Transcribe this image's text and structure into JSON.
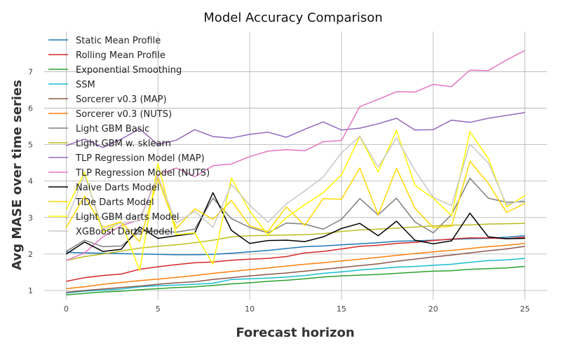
{
  "chart_data": {
    "type": "line",
    "title": "Model Accuracy Comparison",
    "xlabel": "Forecast horizon",
    "ylabel": "Avg MASE over time series",
    "xlim": [
      -1.2,
      26.2
    ],
    "ylim": [
      0.75,
      8.1
    ],
    "xticks": [
      0,
      5,
      10,
      15,
      20,
      25
    ],
    "yticks": [
      1,
      2,
      3,
      4,
      5,
      6,
      7
    ],
    "grid": true,
    "legend": "top-left",
    "x": [
      0,
      1,
      2,
      3,
      4,
      5,
      6,
      7,
      8,
      9,
      10,
      11,
      12,
      13,
      14,
      15,
      16,
      17,
      18,
      19,
      20,
      21,
      22,
      23,
      24,
      25
    ],
    "series": [
      {
        "name": "Static Mean Profile",
        "color": "#1f77b4",
        "values": [
          2.05,
          2.03,
          2.02,
          2.01,
          2.0,
          1.99,
          1.98,
          1.98,
          1.99,
          2.02,
          2.06,
          2.1,
          2.15,
          2.2,
          2.22,
          2.25,
          2.28,
          2.31,
          2.35,
          2.36,
          2.38,
          2.4,
          2.42,
          2.43,
          2.46,
          2.5
        ]
      },
      {
        "name": "Rolling Mean Profile",
        "color": "#d62728",
        "values": [
          1.25,
          1.35,
          1.41,
          1.45,
          1.58,
          1.65,
          1.71,
          1.76,
          1.78,
          1.83,
          1.86,
          1.88,
          1.93,
          2.03,
          2.07,
          2.14,
          2.21,
          2.24,
          2.29,
          2.32,
          2.37,
          2.41,
          2.44,
          2.44,
          2.42,
          2.46
        ]
      },
      {
        "name": "Exponential Smoothing",
        "color": "#2ca02c",
        "values": [
          0.88,
          0.92,
          0.96,
          0.98,
          1.02,
          1.05,
          1.08,
          1.1,
          1.14,
          1.18,
          1.21,
          1.25,
          1.28,
          1.32,
          1.37,
          1.4,
          1.42,
          1.44,
          1.47,
          1.5,
          1.53,
          1.54,
          1.58,
          1.6,
          1.62,
          1.66
        ]
      },
      {
        "name": "SSM",
        "color": "#17becf",
        "values": [
          0.93,
          0.98,
          1.01,
          1.04,
          1.1,
          1.13,
          1.15,
          1.17,
          1.2,
          1.3,
          1.32,
          1.34,
          1.37,
          1.41,
          1.47,
          1.51,
          1.56,
          1.6,
          1.64,
          1.66,
          1.69,
          1.72,
          1.77,
          1.82,
          1.84,
          1.88
        ]
      },
      {
        "name": "Sorcerer v0.3 (MAP)",
        "color": "#8c564b",
        "values": [
          0.95,
          1.0,
          1.04,
          1.08,
          1.12,
          1.17,
          1.21,
          1.24,
          1.3,
          1.35,
          1.4,
          1.44,
          1.48,
          1.53,
          1.58,
          1.63,
          1.68,
          1.73,
          1.8,
          1.86,
          1.92,
          1.97,
          2.03,
          2.09,
          2.14,
          2.21
        ]
      },
      {
        "name": "Sorcerer v0.3 (NUTS)",
        "color": "#ff7f0e",
        "values": [
          1.05,
          1.1,
          1.17,
          1.22,
          1.27,
          1.31,
          1.36,
          1.41,
          1.47,
          1.52,
          1.57,
          1.62,
          1.67,
          1.72,
          1.76,
          1.81,
          1.86,
          1.91,
          1.96,
          2.01,
          2.06,
          2.1,
          2.15,
          2.2,
          2.24,
          2.29
        ]
      },
      {
        "name": "Light GBM Basic",
        "color": "#7f7f7f",
        "values": [
          2.07,
          2.38,
          2.2,
          2.22,
          2.63,
          2.62,
          2.6,
          2.68,
          3.53,
          2.97,
          2.73,
          2.58,
          2.85,
          2.82,
          2.68,
          2.95,
          3.52,
          3.07,
          3.53,
          2.88,
          2.58,
          3.08,
          4.08,
          3.53,
          3.42,
          3.43
        ]
      },
      {
        "name": "Light GBM w. sklearn",
        "color": "#bcbd22",
        "values": [
          1.82,
          1.93,
          2.0,
          2.08,
          2.16,
          2.21,
          2.25,
          2.31,
          2.38,
          2.47,
          2.5,
          2.51,
          2.52,
          2.53,
          2.56,
          2.62,
          2.66,
          2.68,
          2.71,
          2.74,
          2.77,
          2.79,
          2.8,
          2.82,
          2.83,
          2.84
        ]
      },
      {
        "name": "TLP Regression Model (MAP)",
        "color": "#9467bd",
        "values": [
          4.97,
          5.15,
          4.92,
          5.15,
          5.43,
          5.0,
          5.12,
          5.41,
          5.22,
          5.18,
          5.28,
          5.34,
          5.2,
          5.42,
          5.62,
          5.4,
          5.45,
          5.57,
          5.72,
          5.4,
          5.41,
          5.67,
          5.61,
          5.72,
          5.8,
          5.88
        ]
      },
      {
        "name": "TLP Regression Model (NUTS)",
        "color": "#e377c2",
        "values": [
          1.82,
          2.03,
          2.47,
          2.78,
          2.93,
          4.17,
          4.36,
          4.12,
          4.42,
          4.47,
          4.67,
          4.82,
          4.86,
          4.83,
          5.08,
          5.11,
          6.04,
          6.24,
          6.45,
          6.44,
          6.65,
          6.59,
          7.04,
          7.03,
          7.32,
          7.58
        ]
      },
      {
        "name": "Naive Darts Model",
        "color": "#000000",
        "values": [
          2.0,
          2.33,
          2.07,
          2.13,
          2.74,
          2.43,
          2.5,
          2.57,
          3.68,
          2.65,
          2.29,
          2.37,
          2.38,
          2.34,
          2.47,
          2.7,
          2.84,
          2.5,
          2.9,
          2.38,
          2.28,
          2.36,
          3.12,
          2.47,
          2.42,
          2.43
        ]
      },
      {
        "name": "TiDe Darts Model",
        "color": "#ffd700",
        "values": [
          2.72,
          3.59,
          2.73,
          2.88,
          2.34,
          4.07,
          2.7,
          3.24,
          2.95,
          3.47,
          2.77,
          2.62,
          3.29,
          2.78,
          3.52,
          3.5,
          4.36,
          3.07,
          4.35,
          3.26,
          2.72,
          2.76,
          4.54,
          3.94,
          3.14,
          3.39
        ]
      },
      {
        "name": "Light GBM darts Model",
        "color": "#ffff00",
        "values": [
          3.21,
          4.24,
          2.59,
          2.88,
          1.55,
          4.48,
          2.53,
          2.58,
          1.72,
          4.08,
          3.18,
          2.52,
          3.0,
          3.35,
          3.68,
          4.17,
          5.22,
          4.25,
          5.39,
          3.88,
          3.53,
          3.05,
          5.35,
          4.62,
          3.29,
          3.6
        ]
      },
      {
        "name": "XGBoost Darts Model",
        "color": "#c7c7c7",
        "values": [
          2.92,
          4.16,
          2.68,
          2.85,
          2.91,
          4.14,
          2.85,
          3.17,
          2.73,
          3.91,
          3.34,
          2.87,
          3.38,
          3.73,
          4.11,
          4.77,
          5.23,
          4.38,
          5.18,
          4.3,
          3.55,
          3.33,
          5.01,
          4.5,
          3.35,
          3.49
        ]
      }
    ]
  }
}
